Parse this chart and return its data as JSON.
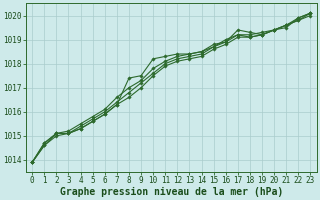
{
  "x": [
    0,
    1,
    2,
    3,
    4,
    5,
    6,
    7,
    8,
    9,
    10,
    11,
    12,
    13,
    14,
    15,
    16,
    17,
    18,
    19,
    20,
    21,
    22,
    23
  ],
  "lines": [
    [
      1013.9,
      1014.7,
      1015.1,
      1015.1,
      1015.3,
      1015.6,
      1015.9,
      1016.3,
      1017.4,
      1017.5,
      1018.2,
      1018.3,
      1018.4,
      1018.4,
      1018.5,
      1018.8,
      1018.9,
      1019.4,
      1019.3,
      1019.2,
      1019.4,
      1019.5,
      1019.9,
      1020.1
    ],
    [
      1013.9,
      1014.7,
      1015.1,
      1015.2,
      1015.5,
      1015.8,
      1016.1,
      1016.6,
      1017.0,
      1017.3,
      1017.8,
      1018.1,
      1018.3,
      1018.4,
      1018.5,
      1018.7,
      1019.0,
      1019.2,
      1019.2,
      1019.3,
      1019.4,
      1019.6,
      1019.8,
      1020.1
    ],
    [
      1013.9,
      1014.6,
      1015.0,
      1015.1,
      1015.3,
      1015.6,
      1015.9,
      1016.3,
      1016.6,
      1017.0,
      1017.5,
      1017.9,
      1018.1,
      1018.2,
      1018.3,
      1018.6,
      1018.8,
      1019.1,
      1019.1,
      1019.2,
      1019.4,
      1019.6,
      1019.8,
      1020.0
    ],
    [
      1013.9,
      1014.6,
      1015.1,
      1015.1,
      1015.4,
      1015.7,
      1016.0,
      1016.4,
      1016.8,
      1017.2,
      1017.6,
      1018.0,
      1018.2,
      1018.3,
      1018.4,
      1018.7,
      1018.9,
      1019.2,
      1019.1,
      1019.2,
      1019.4,
      1019.6,
      1019.9,
      1020.1
    ]
  ],
  "line_color": "#2d6a2d",
  "marker": "D",
  "marker_size": 1.8,
  "bg_color": "#ceeaea",
  "grid_color": "#aacccc",
  "axis_label_color": "#1a4d1a",
  "xlabel": "Graphe pression niveau de la mer (hPa)",
  "ylim": [
    1013.5,
    1020.5
  ],
  "xlim": [
    -0.5,
    23.5
  ],
  "yticks": [
    1014,
    1015,
    1016,
    1017,
    1018,
    1019,
    1020
  ],
  "xticks": [
    0,
    1,
    2,
    3,
    4,
    5,
    6,
    7,
    8,
    9,
    10,
    11,
    12,
    13,
    14,
    15,
    16,
    17,
    18,
    19,
    20,
    21,
    22,
    23
  ],
  "tick_fontsize": 5.5,
  "xlabel_fontsize": 7.0,
  "line_width": 0.8,
  "spine_color": "#2d6a2d"
}
